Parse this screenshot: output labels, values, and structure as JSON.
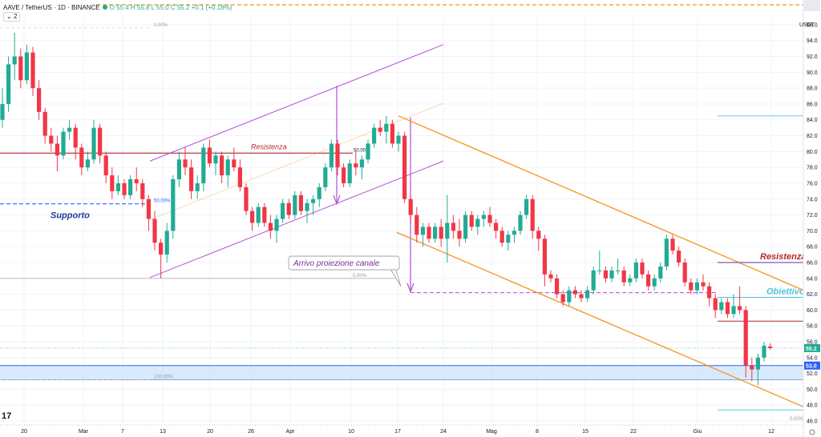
{
  "header": {
    "symbol": "AAVE / TetherUS · 1D · BINANCE",
    "ohlc": "O 55.4  H 55.8  L 55.0  C 55.2  +0.1 (+0.18%)",
    "indicator_toggle": "2",
    "currency": "USDT"
  },
  "colors": {
    "up": "#22ab94",
    "down": "#f23645",
    "purple": "#b24fd6",
    "orange": "#f7931a",
    "resistance": "#b2292e",
    "support": "#2962ff",
    "zone": "#bbd9fb",
    "target": "#4ec4d9"
  },
  "chart_data": {
    "type": "candlestick",
    "y_range": [
      45.6,
      96.9
    ],
    "y_ticks": [
      "96.0",
      "94.0",
      "92.0",
      "90.0",
      "88.0",
      "86.0",
      "84.0",
      "82.0",
      "80.0",
      "78.0",
      "76.0",
      "74.0",
      "72.0",
      "70.0",
      "68.0",
      "66.0",
      "64.0",
      "62.0",
      "60.0",
      "58.0",
      "56.0",
      "54.0",
      "52.0",
      "50.0",
      "48.0",
      "46.0"
    ],
    "x_labels": [
      "20",
      "Mar",
      "7",
      "13",
      "20",
      "26",
      "Apr",
      "10",
      "17",
      "24",
      "Mag",
      "8",
      "15",
      "22",
      "Giu",
      "12"
    ],
    "last_price_label": "55.2",
    "level_53_label": "53.0",
    "annotations": {
      "resistenza_left": "Resistenza",
      "supporto": "Supporto",
      "arrivo": "Arrivo proiezione canale",
      "resistenza_right": "Resistenza",
      "obiettivo": "Obiettivo",
      "fib_50_a": "50.00",
      "fib_50_b": "50.00%",
      "fib_0_a": "0.00%",
      "fib_0_b": "0.00%",
      "fib_0_c": "0.00%",
      "fib_100": "100.00%"
    },
    "candles": [
      [
        84.0,
        88.0,
        83.0,
        86.0
      ],
      [
        86.0,
        92.0,
        85.0,
        91.0
      ],
      [
        91.0,
        95.0,
        89.0,
        92.0
      ],
      [
        92.0,
        93.0,
        88.0,
        89.0
      ],
      [
        89.0,
        93.5,
        88.5,
        92.5
      ],
      [
        92.5,
        93.2,
        87.0,
        88.0
      ],
      [
        88.0,
        89.0,
        84.0,
        85.0
      ],
      [
        85.0,
        85.5,
        81.0,
        82.0
      ],
      [
        82.0,
        83.0,
        80.0,
        81.0
      ],
      [
        81.0,
        82.0,
        77.5,
        79.5
      ],
      [
        79.5,
        83.0,
        79.0,
        82.5
      ],
      [
        82.5,
        84.0,
        81.5,
        83.0
      ],
      [
        83.0,
        83.5,
        79.0,
        80.5
      ],
      [
        80.5,
        81.0,
        77.0,
        78.0
      ],
      [
        78.0,
        80.0,
        77.5,
        79.0
      ],
      [
        79.0,
        84.0,
        78.5,
        83.0
      ],
      [
        83.0,
        83.5,
        78.5,
        79.5
      ],
      [
        79.5,
        80.0,
        76.0,
        77.0
      ],
      [
        77.0,
        78.0,
        74.0,
        75.0
      ],
      [
        75.0,
        77.0,
        74.5,
        76.0
      ],
      [
        76.0,
        76.5,
        74.0,
        74.5
      ],
      [
        74.5,
        77.0,
        74.0,
        76.5
      ],
      [
        76.5,
        78.0,
        75.0,
        76.0
      ],
      [
        76.0,
        76.5,
        73.0,
        74.0
      ],
      [
        74.0,
        74.5,
        70.0,
        71.5
      ],
      [
        71.5,
        72.5,
        67.5,
        68.5
      ],
      [
        68.5,
        69.0,
        64.0,
        67.0
      ],
      [
        67.0,
        71.0,
        66.0,
        70.0
      ],
      [
        70.0,
        77.0,
        69.0,
        76.5
      ],
      [
        76.5,
        80.0,
        75.5,
        79.0
      ],
      [
        79.0,
        80.5,
        77.0,
        78.0
      ],
      [
        78.0,
        79.0,
        74.0,
        75.0
      ],
      [
        75.0,
        77.0,
        74.0,
        76.0
      ],
      [
        76.0,
        81.0,
        75.0,
        80.5
      ],
      [
        80.5,
        81.5,
        78.0,
        78.5
      ],
      [
        78.5,
        80.0,
        77.0,
        79.5
      ],
      [
        79.5,
        80.0,
        76.0,
        77.0
      ],
      [
        77.0,
        79.5,
        75.5,
        79.0
      ],
      [
        79.0,
        80.5,
        77.5,
        78.0
      ],
      [
        78.0,
        79.0,
        75.0,
        75.5
      ],
      [
        75.5,
        76.0,
        72.0,
        72.5
      ],
      [
        72.5,
        73.0,
        70.0,
        71.0
      ],
      [
        71.0,
        73.5,
        70.5,
        73.0
      ],
      [
        73.0,
        73.5,
        70.5,
        71.0
      ],
      [
        71.0,
        72.0,
        69.0,
        70.0
      ],
      [
        70.0,
        72.0,
        68.5,
        71.5
      ],
      [
        71.5,
        74.0,
        71.0,
        73.5
      ],
      [
        73.5,
        74.0,
        71.5,
        72.0
      ],
      [
        72.0,
        75.0,
        71.5,
        74.5
      ],
      [
        74.5,
        75.0,
        72.0,
        72.5
      ],
      [
        72.5,
        74.0,
        71.0,
        73.5
      ],
      [
        73.5,
        74.5,
        72.0,
        74.0
      ],
      [
        74.0,
        76.0,
        73.0,
        75.5
      ],
      [
        75.5,
        78.5,
        75.0,
        78.0
      ],
      [
        78.0,
        81.5,
        77.5,
        81.0
      ],
      [
        81.0,
        81.5,
        77.0,
        78.0
      ],
      [
        78.0,
        78.5,
        75.5,
        76.0
      ],
      [
        76.0,
        79.0,
        75.5,
        78.5
      ],
      [
        78.5,
        80.0,
        77.0,
        78.0
      ],
      [
        78.0,
        79.5,
        76.5,
        79.0
      ],
      [
        79.0,
        81.5,
        78.5,
        81.0
      ],
      [
        81.0,
        83.5,
        80.5,
        83.0
      ],
      [
        83.0,
        84.0,
        82.0,
        82.5
      ],
      [
        82.5,
        84.5,
        81.0,
        83.5
      ],
      [
        83.5,
        84.0,
        80.5,
        81.0
      ],
      [
        81.0,
        82.5,
        80.0,
        82.0
      ],
      [
        82.0,
        82.5,
        73.5,
        74.0
      ],
      [
        74.0,
        74.5,
        71.0,
        72.0
      ],
      [
        72.0,
        73.0,
        68.5,
        69.5
      ],
      [
        69.5,
        71.0,
        68.0,
        70.5
      ],
      [
        70.5,
        71.0,
        68.5,
        69.0
      ],
      [
        69.0,
        71.0,
        68.5,
        70.5
      ],
      [
        70.5,
        71.5,
        68.0,
        69.0
      ],
      [
        69.0,
        74.5,
        66.0,
        71.0
      ],
      [
        71.0,
        72.0,
        69.0,
        70.0
      ],
      [
        70.0,
        71.5,
        68.0,
        69.0
      ],
      [
        69.0,
        72.5,
        68.5,
        72.0
      ],
      [
        72.0,
        72.5,
        70.0,
        70.5
      ],
      [
        70.5,
        72.0,
        69.5,
        71.5
      ],
      [
        71.5,
        72.5,
        70.5,
        72.0
      ],
      [
        72.0,
        73.0,
        70.5,
        71.0
      ],
      [
        71.0,
        71.5,
        69.0,
        70.0
      ],
      [
        70.0,
        70.5,
        68.0,
        68.5
      ],
      [
        68.5,
        70.0,
        67.5,
        69.5
      ],
      [
        69.5,
        70.5,
        68.5,
        70.0
      ],
      [
        70.0,
        72.5,
        69.5,
        72.0
      ],
      [
        72.0,
        74.5,
        71.5,
        74.0
      ],
      [
        74.0,
        74.5,
        69.0,
        70.0
      ],
      [
        70.0,
        70.5,
        67.5,
        69.0
      ],
      [
        69.0,
        69.5,
        63.0,
        64.5
      ],
      [
        64.5,
        65.0,
        63.5,
        64.0
      ],
      [
        64.0,
        64.5,
        61.5,
        62.0
      ],
      [
        62.0,
        62.5,
        60.5,
        61.0
      ],
      [
        61.0,
        63.0,
        60.5,
        62.5
      ],
      [
        62.5,
        63.0,
        61.5,
        62.0
      ],
      [
        62.0,
        62.5,
        61.0,
        61.5
      ],
      [
        61.5,
        63.0,
        61.0,
        62.5
      ],
      [
        62.5,
        65.5,
        62.0,
        65.0
      ],
      [
        65.0,
        67.5,
        64.5,
        65.0
      ],
      [
        65.0,
        65.5,
        63.5,
        64.0
      ],
      [
        64.0,
        65.5,
        63.5,
        65.0
      ],
      [
        65.0,
        66.5,
        64.5,
        65.0
      ],
      [
        65.0,
        65.5,
        63.0,
        63.5
      ],
      [
        63.5,
        64.5,
        63.0,
        64.0
      ],
      [
        64.0,
        66.5,
        63.5,
        66.0
      ],
      [
        66.0,
        66.5,
        64.0,
        64.5
      ],
      [
        64.5,
        65.0,
        62.5,
        63.0
      ],
      [
        63.0,
        64.5,
        62.5,
        64.0
      ],
      [
        64.0,
        66.0,
        63.5,
        65.5
      ],
      [
        65.5,
        69.5,
        65.0,
        69.0
      ],
      [
        69.0,
        69.5,
        67.0,
        67.5
      ],
      [
        67.5,
        68.0,
        65.5,
        66.0
      ],
      [
        66.0,
        66.5,
        63.0,
        63.5
      ],
      [
        63.5,
        64.0,
        62.0,
        62.5
      ],
      [
        62.5,
        64.0,
        62.0,
        63.5
      ],
      [
        63.5,
        64.5,
        62.5,
        63.0
      ],
      [
        63.0,
        63.5,
        60.5,
        61.5
      ],
      [
        61.5,
        62.0,
        59.0,
        60.0
      ],
      [
        60.0,
        61.5,
        59.5,
        61.0
      ],
      [
        61.0,
        61.5,
        59.0,
        59.5
      ],
      [
        59.5,
        62.0,
        59.0,
        60.5
      ],
      [
        60.5,
        63.0,
        59.5,
        60.0
      ],
      [
        60.0,
        60.5,
        51.5,
        53.0
      ],
      [
        53.0,
        54.0,
        51.0,
        52.5
      ],
      [
        52.5,
        54.5,
        50.5,
        54.0
      ],
      [
        54.0,
        56.0,
        53.5,
        55.5
      ],
      [
        55.4,
        55.8,
        55.0,
        55.2
      ]
    ],
    "fib_upper_level": 79.8,
    "support_level": 73.4,
    "zone": [
      51.2,
      53.0
    ],
    "resistance_right_level": 66.0,
    "objective_level": 61.6,
    "level_58_6": 58.6,
    "arrivo_target_level": 62.2
  }
}
